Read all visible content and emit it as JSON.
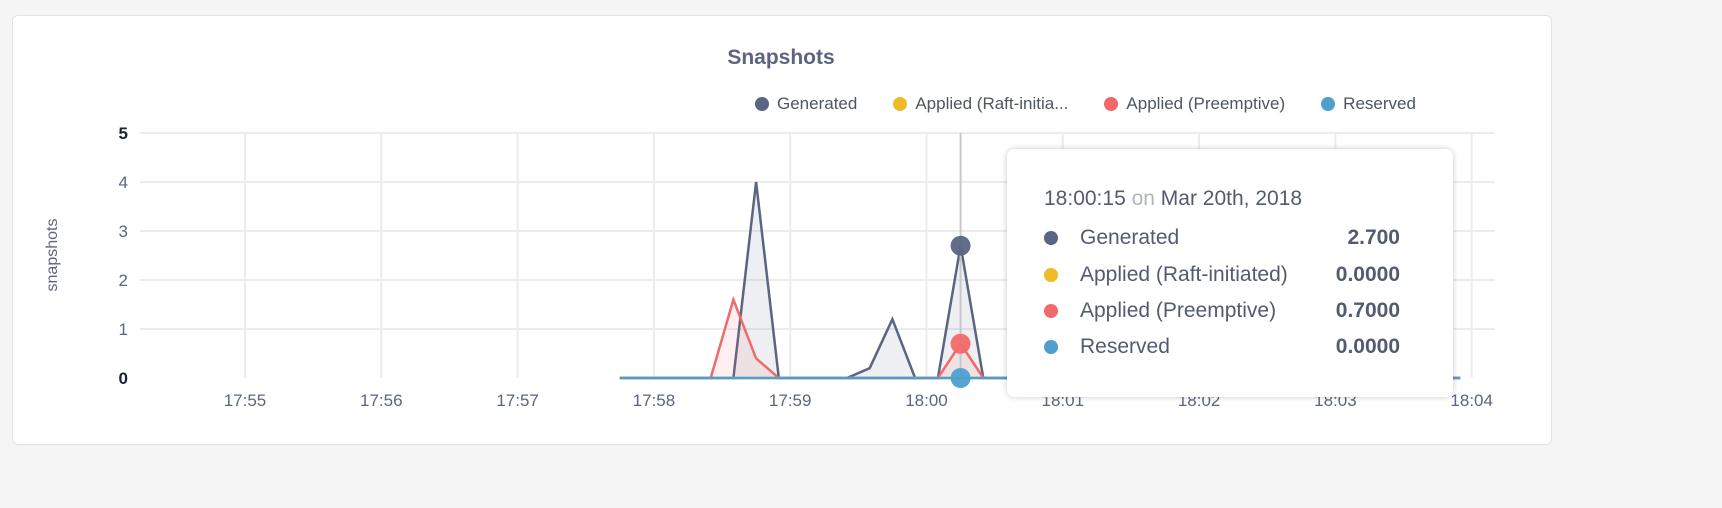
{
  "chart_data": {
    "type": "area",
    "title": "Snapshots",
    "ylabel": "snapshots",
    "xlabel": "",
    "ylim": [
      0,
      5
    ],
    "yticks": [
      "0",
      "1",
      "2",
      "3",
      "4",
      "5"
    ],
    "xticks": [
      "17:55",
      "17:56",
      "17:57",
      "17:58",
      "17:59",
      "18:00",
      "18:01",
      "18:02",
      "18:03",
      "18:04"
    ],
    "grid": true,
    "legend_position": "top-right",
    "x": [
      "17:57:45",
      "17:57:55",
      "17:58:05",
      "17:58:15",
      "17:58:25",
      "17:58:35",
      "17:58:45",
      "17:58:55",
      "17:59:05",
      "17:59:15",
      "17:59:25",
      "17:59:35",
      "17:59:45",
      "17:59:55",
      "18:00:05",
      "18:00:15",
      "18:00:25",
      "18:00:35",
      "18:00:45",
      "18:00:55",
      "18:01:05",
      "18:01:15",
      "18:01:25",
      "18:01:35",
      "18:01:45",
      "18:01:55",
      "18:02:05",
      "18:02:15",
      "18:02:25",
      "18:02:35",
      "18:02:45",
      "18:02:55",
      "18:03:05",
      "18:03:15",
      "18:03:25",
      "18:03:35",
      "18:03:45",
      "18:03:55"
    ],
    "series": [
      {
        "name": "Generated",
        "legend_label": "Generated",
        "color": "#5a6583",
        "values": [
          0,
          0,
          0,
          0,
          0,
          0,
          4,
          0,
          0,
          0,
          0,
          0.2,
          1.2,
          0,
          0,
          2.7,
          0,
          0,
          0,
          0.3,
          0,
          0,
          0,
          0,
          0,
          0,
          0,
          0,
          0,
          0,
          0,
          0,
          0,
          0.3,
          0,
          0,
          0,
          0
        ]
      },
      {
        "name": "Applied (Raft-initiated)",
        "legend_label": "Applied (Raft-initia...",
        "color": "#f0bb28",
        "values": [
          0,
          0,
          0,
          0,
          0,
          0,
          0,
          0,
          0,
          0,
          0,
          0,
          0,
          0,
          0,
          0,
          0,
          0,
          0,
          0,
          0,
          0,
          0,
          0,
          0,
          0,
          0,
          0,
          0,
          0,
          0,
          0,
          0,
          0,
          0,
          0,
          0,
          0
        ]
      },
      {
        "name": "Applied (Preemptive)",
        "legend_label": "Applied (Preemptive)",
        "color": "#f16969",
        "values": [
          0,
          0,
          0,
          0,
          0,
          1.6,
          0.4,
          0,
          0,
          0,
          0,
          0,
          0,
          0,
          0,
          0.7,
          0,
          0,
          0,
          0,
          0,
          0,
          0,
          0,
          0,
          0,
          0,
          0,
          0,
          0,
          0,
          0,
          0,
          0,
          0,
          0,
          0,
          0
        ]
      },
      {
        "name": "Reserved",
        "legend_label": "Reserved",
        "color": "#4e9fd0",
        "values": [
          0,
          0,
          0,
          0,
          0,
          0,
          0,
          0,
          0,
          0,
          0,
          0,
          0,
          0,
          0,
          0,
          0,
          0,
          0,
          0,
          0,
          0,
          0,
          0,
          0,
          0,
          0,
          0,
          0,
          0,
          0,
          0,
          0,
          0,
          0,
          0,
          0,
          0
        ]
      }
    ],
    "hover": {
      "time": "18:00:15",
      "on": "on",
      "date": "Mar 20th, 2018",
      "x": "18:00:15",
      "rows": [
        {
          "label": "Generated",
          "value": "2.700"
        },
        {
          "label": "Applied (Raft-initiated)",
          "value": "0.0000"
        },
        {
          "label": "Applied (Preemptive)",
          "value": "0.7000"
        },
        {
          "label": "Reserved",
          "value": "0.0000"
        }
      ]
    }
  }
}
